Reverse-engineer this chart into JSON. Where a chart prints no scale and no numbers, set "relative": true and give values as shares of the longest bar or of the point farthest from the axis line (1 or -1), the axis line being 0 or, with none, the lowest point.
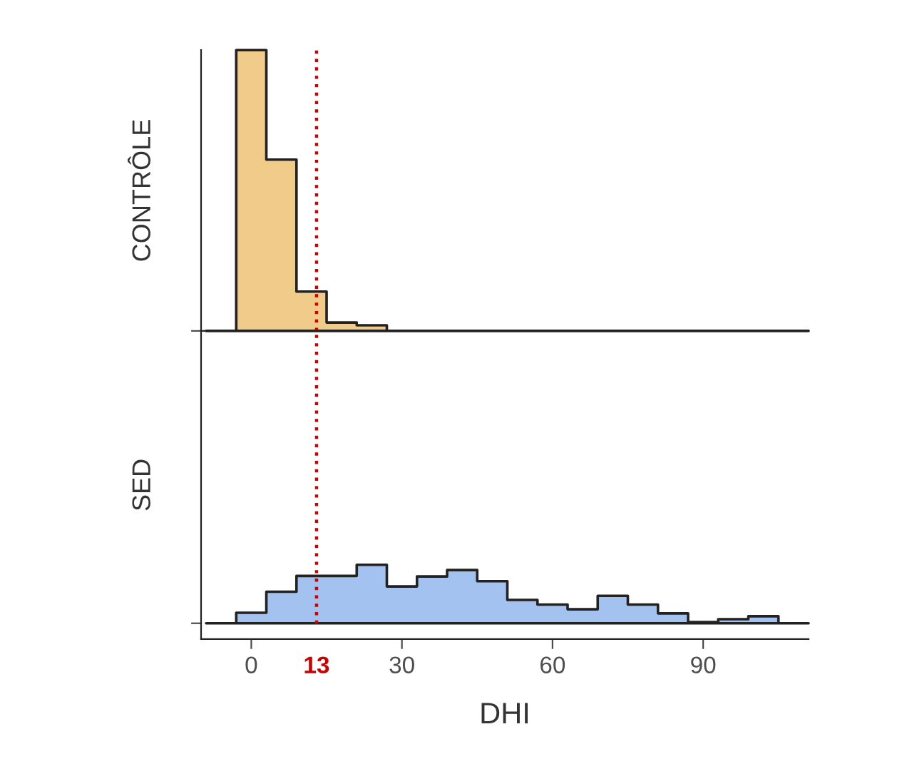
{
  "chart_data": [
    {
      "type": "area",
      "relative": true,
      "ylabel": "CONTRÔLE",
      "x": [
        -9,
        -3,
        3,
        9,
        15,
        21,
        27,
        33,
        39,
        45,
        51,
        57,
        63,
        69,
        75,
        81,
        87,
        93,
        99,
        105,
        111
      ],
      "series": [
        {
          "color": "#f0cb8a",
          "values": [
            0,
            1,
            0.61,
            0.14,
            0.03,
            0.02,
            0,
            0,
            0,
            0,
            0,
            0,
            0,
            0,
            0,
            0,
            0,
            0,
            0,
            0,
            0
          ]
        }
      ],
      "xlim": [
        -10,
        111
      ],
      "tick_labels": false,
      "ref_lines": [
        {
          "axis": "x",
          "value": 13,
          "label": null,
          "color": "#cc0000",
          "line_style": "dotted"
        }
      ]
    },
    {
      "type": "area",
      "relative": true,
      "ylabel": "SED",
      "xlabel": "DHI",
      "x": [
        -9,
        -3,
        3,
        9,
        15,
        21,
        27,
        33,
        39,
        45,
        51,
        57,
        63,
        69,
        75,
        81,
        87,
        93,
        99,
        105,
        111
      ],
      "series": [
        {
          "color": "#a4c2f0",
          "values": [
            0,
            0.18,
            0.54,
            0.81,
            0.81,
            1,
            0.63,
            0.8,
            0.91,
            0.72,
            0.4,
            0.32,
            0.24,
            0.47,
            0.32,
            0.17,
            0.02,
            0.07,
            0.12,
            0,
            0
          ]
        }
      ],
      "xlim": [
        -10,
        111
      ],
      "xticks": [
        0,
        {
          "value": 13,
          "label": "13"
        },
        30,
        60,
        90
      ],
      "tick_labels": "x",
      "ref_lines": [
        {
          "axis": "x",
          "value": 13,
          "label": null,
          "color": "#cc0000",
          "line_style": "dotted"
        }
      ]
    }
  ]
}
